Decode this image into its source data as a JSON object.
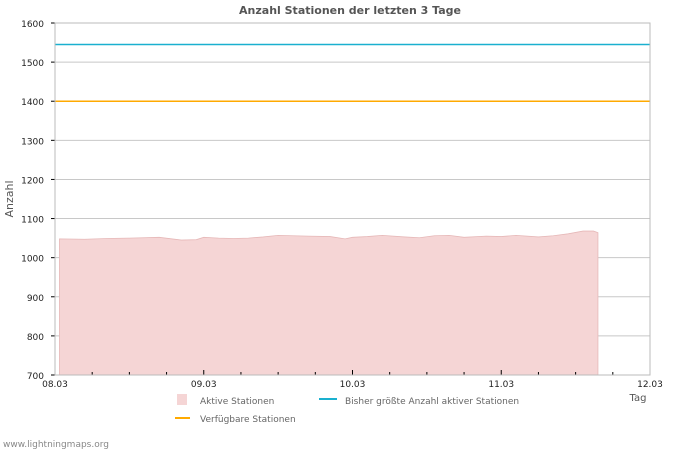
{
  "chart_data": {
    "type": "area",
    "title": "Anzahl Stationen der letzten 3 Tage",
    "xlabel": "Tag",
    "ylabel": "Anzahl",
    "ylim": [
      700,
      1600
    ],
    "yticks": [
      700,
      800,
      900,
      1000,
      1100,
      1200,
      1300,
      1400,
      1500,
      1600
    ],
    "xlim": [
      0,
      4
    ],
    "xticks": [
      {
        "v": 0,
        "label": "08.03"
      },
      {
        "v": 1,
        "label": "09.03"
      },
      {
        "v": 2,
        "label": "10.03"
      },
      {
        "v": 3,
        "label": "11.03"
      },
      {
        "v": 4,
        "label": "12.03"
      }
    ],
    "grid": true,
    "series": [
      {
        "name": "Aktive Stationen",
        "type": "area",
        "color": "#f5d5d5",
        "stroke": "#e6b8b8",
        "x": [
          0.03,
          0.2,
          0.35,
          0.5,
          0.7,
          0.85,
          0.95,
          1.0,
          1.1,
          1.2,
          1.3,
          1.4,
          1.5,
          1.7,
          1.85,
          1.95,
          2.0,
          2.1,
          2.2,
          2.35,
          2.45,
          2.55,
          2.65,
          2.75,
          2.9,
          3.0,
          3.1,
          3.25,
          3.35,
          3.45,
          3.55,
          3.62,
          3.65
        ],
        "y": [
          1048,
          1047,
          1049,
          1050,
          1052,
          1045,
          1046,
          1052,
          1050,
          1049,
          1050,
          1053,
          1057,
          1055,
          1054,
          1048,
          1052,
          1054,
          1057,
          1053,
          1051,
          1056,
          1057,
          1052,
          1055,
          1054,
          1057,
          1053,
          1056,
          1061,
          1068,
          1068,
          1064
        ]
      },
      {
        "name": "Bisher größte Anzahl aktiver Stationen",
        "type": "hline",
        "color": "#1ab0cf",
        "value": 1545
      },
      {
        "name": "Verfügbare Stationen",
        "type": "hline",
        "color": "#ffaa00",
        "value": 1400
      }
    ],
    "legend": "bottom"
  },
  "footer": "www.lightningmaps.org"
}
